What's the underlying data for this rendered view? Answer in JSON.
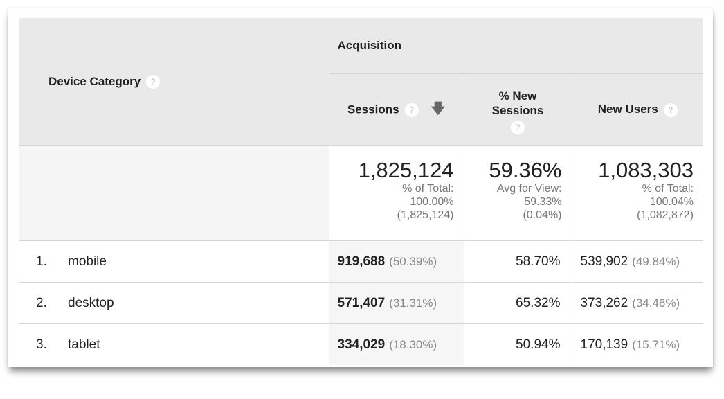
{
  "header": {
    "dimension": "Device Category",
    "group": "Acquisition",
    "columns": [
      {
        "label": "Sessions",
        "sorted": "descending"
      },
      {
        "label": "% New Sessions"
      },
      {
        "label": "New Users"
      }
    ],
    "help_glyph": "?"
  },
  "totals": {
    "sessions": {
      "value": "1,825,124",
      "line1": "% of Total:",
      "line2": "100.00%",
      "line3": "(1,825,124)"
    },
    "pct_new": {
      "value": "59.36%",
      "line1": "Avg for View:",
      "line2": "59.33%",
      "line3": "(0.04%)"
    },
    "new_users": {
      "value": "1,083,303",
      "line1": "% of Total:",
      "line2": "100.04%",
      "line3": "(1,082,872)"
    }
  },
  "rows": [
    {
      "index": "1.",
      "device": "mobile",
      "sessions": "919,688",
      "sessions_pct": "(50.39%)",
      "pct_new": "58.70%",
      "new_users": "539,902",
      "new_users_pct": "(49.84%)"
    },
    {
      "index": "2.",
      "device": "desktop",
      "sessions": "571,407",
      "sessions_pct": "(31.31%)",
      "pct_new": "65.32%",
      "new_users": "373,262",
      "new_users_pct": "(34.46%)"
    },
    {
      "index": "3.",
      "device": "tablet",
      "sessions": "334,029",
      "sessions_pct": "(18.30%)",
      "pct_new": "50.94%",
      "new_users": "170,139",
      "new_users_pct": "(15.71%)"
    }
  ]
}
